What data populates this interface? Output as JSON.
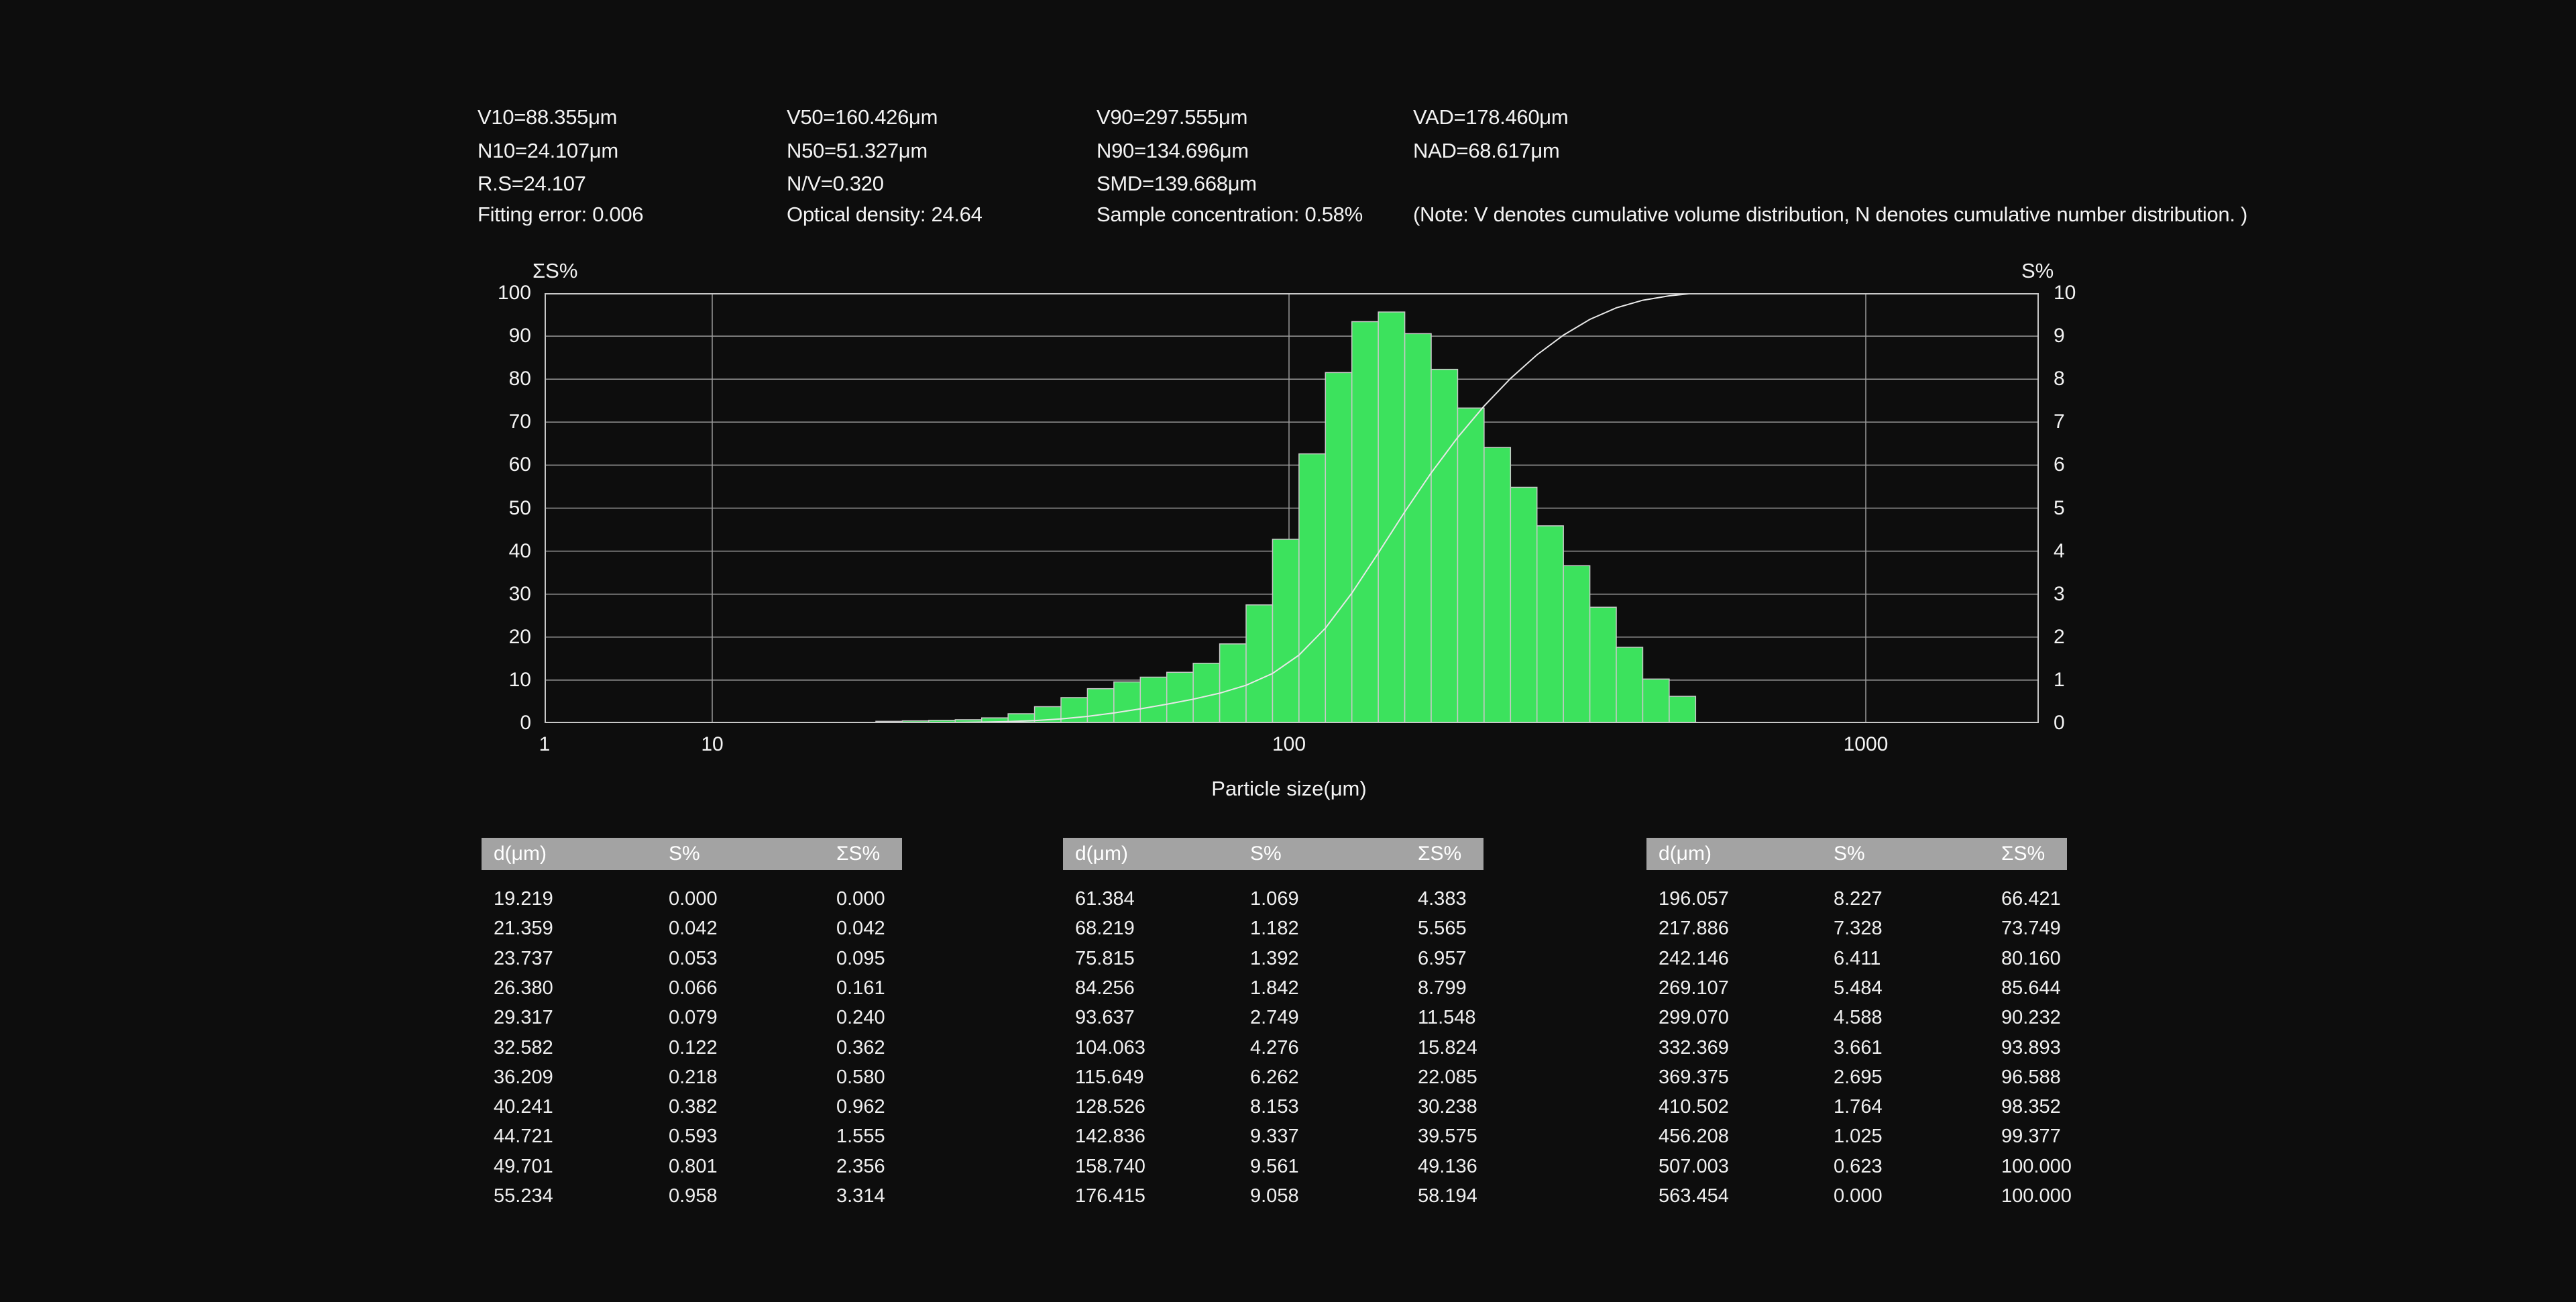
{
  "stats": {
    "rows": [
      [
        "V10=88.355μm",
        "V50=160.426μm",
        "V90=297.555μm",
        "VAD=178.460μm"
      ],
      [
        "N10=24.107μm",
        "N50=51.327μm",
        "N90=134.696μm",
        "NAD=68.617μm"
      ],
      [
        "R.S=24.107",
        "N/V=0.320",
        "SMD=139.668μm",
        ""
      ],
      [
        "Fitting error: 0.006",
        "Optical density: 24.64",
        "Sample concentration: 0.58%",
        "(Note: V denotes cumulative volume distribution, N denotes cumulative number distribution. )"
      ]
    ]
  },
  "chart": {
    "left_axis_title": "ΣS%",
    "right_axis_title": "S%",
    "xlabel": "Particle size(μm)",
    "left_ticks": [
      "0",
      "10",
      "20",
      "30",
      "40",
      "50",
      "60",
      "70",
      "80",
      "90",
      "100"
    ],
    "right_ticks": [
      "0",
      "1",
      "2",
      "3",
      "4",
      "5",
      "6",
      "7",
      "8",
      "9",
      "10"
    ],
    "x_ticks": [
      "1",
      "10",
      "100",
      "1000"
    ],
    "colors": {
      "bar_fill": "#3ce25d",
      "bar_stroke": "#c9c9c9",
      "grid": "#9a9a9a",
      "frame": "#c8c8c8",
      "curve": "#e8e8e8",
      "background": "#0d0d0d"
    }
  },
  "chart_data": {
    "type": "bar",
    "x_scale": "log",
    "xlabel": "Particle size(μm)",
    "ylabel_left": "ΣS%",
    "ylabel_right": "S%",
    "ylim_left": [
      0,
      100
    ],
    "ylim_right": [
      0,
      10
    ],
    "x_ticks": [
      1,
      10,
      100,
      1000
    ],
    "x": [
      19.219,
      21.359,
      23.737,
      26.38,
      29.317,
      32.582,
      36.209,
      40.241,
      44.721,
      49.701,
      55.234,
      61.384,
      68.219,
      75.815,
      84.256,
      93.637,
      104.063,
      115.649,
      128.526,
      142.836,
      158.74,
      176.415,
      196.057,
      217.886,
      242.146,
      269.107,
      299.07,
      332.369,
      369.375,
      410.502,
      456.208,
      507.003,
      563.454
    ],
    "series": [
      {
        "name": "S%",
        "type": "bar",
        "axis": "right",
        "values": [
          0.0,
          0.042,
          0.053,
          0.066,
          0.079,
          0.122,
          0.218,
          0.382,
          0.593,
          0.801,
          0.958,
          1.069,
          1.182,
          1.392,
          1.842,
          2.749,
          4.276,
          6.262,
          8.153,
          9.337,
          9.561,
          9.058,
          8.227,
          7.328,
          6.411,
          5.484,
          4.588,
          3.661,
          2.695,
          1.764,
          1.025,
          0.623,
          0.0
        ]
      },
      {
        "name": "ΣS%",
        "type": "line",
        "axis": "left",
        "values": [
          0.0,
          0.042,
          0.095,
          0.161,
          0.24,
          0.362,
          0.58,
          0.962,
          1.555,
          2.356,
          3.314,
          4.383,
          5.565,
          6.957,
          8.799,
          11.548,
          15.824,
          22.085,
          30.238,
          39.575,
          49.136,
          58.194,
          66.421,
          73.749,
          80.16,
          85.644,
          90.232,
          93.893,
          96.588,
          98.352,
          99.377,
          100.0,
          100.0
        ]
      }
    ]
  },
  "tables": {
    "headers": [
      "d(μm)",
      "S%",
      "ΣS%"
    ],
    "groups": [
      [
        [
          "19.219",
          "0.000",
          "0.000"
        ],
        [
          "21.359",
          "0.042",
          "0.042"
        ],
        [
          "23.737",
          "0.053",
          "0.095"
        ],
        [
          "26.380",
          "0.066",
          "0.161"
        ],
        [
          "29.317",
          "0.079",
          "0.240"
        ],
        [
          "32.582",
          "0.122",
          "0.362"
        ],
        [
          "36.209",
          "0.218",
          "0.580"
        ],
        [
          "40.241",
          "0.382",
          "0.962"
        ],
        [
          "44.721",
          "0.593",
          "1.555"
        ],
        [
          "49.701",
          "0.801",
          "2.356"
        ],
        [
          "55.234",
          "0.958",
          "3.314"
        ]
      ],
      [
        [
          "61.384",
          "1.069",
          "4.383"
        ],
        [
          "68.219",
          "1.182",
          "5.565"
        ],
        [
          "75.815",
          "1.392",
          "6.957"
        ],
        [
          "84.256",
          "1.842",
          "8.799"
        ],
        [
          "93.637",
          "2.749",
          "11.548"
        ],
        [
          "104.063",
          "4.276",
          "15.824"
        ],
        [
          "115.649",
          "6.262",
          "22.085"
        ],
        [
          "128.526",
          "8.153",
          "30.238"
        ],
        [
          "142.836",
          "9.337",
          "39.575"
        ],
        [
          "158.740",
          "9.561",
          "49.136"
        ],
        [
          "176.415",
          "9.058",
          "58.194"
        ]
      ],
      [
        [
          "196.057",
          "8.227",
          "66.421"
        ],
        [
          "217.886",
          "7.328",
          "73.749"
        ],
        [
          "242.146",
          "6.411",
          "80.160"
        ],
        [
          "269.107",
          "5.484",
          "85.644"
        ],
        [
          "299.070",
          "4.588",
          "90.232"
        ],
        [
          "332.369",
          "3.661",
          "93.893"
        ],
        [
          "369.375",
          "2.695",
          "96.588"
        ],
        [
          "410.502",
          "1.764",
          "98.352"
        ],
        [
          "456.208",
          "1.025",
          "99.377"
        ],
        [
          "507.003",
          "0.623",
          "100.000"
        ],
        [
          "563.454",
          "0.000",
          "100.000"
        ]
      ]
    ]
  }
}
